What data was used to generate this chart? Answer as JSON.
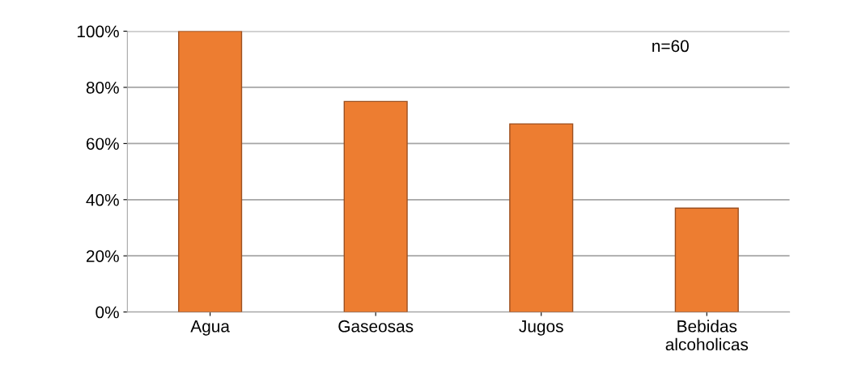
{
  "chart_data": {
    "type": "bar",
    "categories": [
      "Agua",
      "Gaseosas",
      "Jugos",
      "Bebidas\nalcoholicas"
    ],
    "values": [
      100,
      75,
      67,
      37
    ],
    "color": "#ed7d31",
    "ylim": [
      0,
      100
    ],
    "yticks": [
      {
        "value": 0,
        "label": "0%"
      },
      {
        "value": 20,
        "label": "20%"
      },
      {
        "value": 40,
        "label": "40%"
      },
      {
        "value": 60,
        "label": "60%"
      },
      {
        "value": 80,
        "label": "80%"
      },
      {
        "value": 100,
        "label": "100%"
      }
    ],
    "grid": "y",
    "annotations": [
      "n=60"
    ]
  }
}
